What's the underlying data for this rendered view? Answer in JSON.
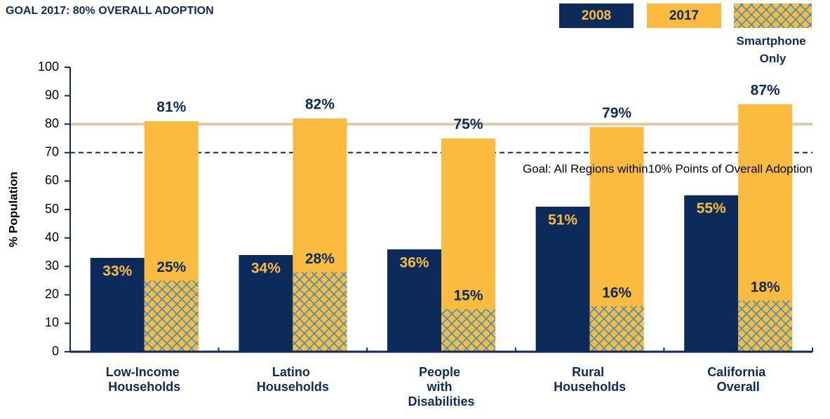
{
  "chart_data": {
    "type": "bar",
    "title": "GOAL 2017: 80% OVERALL ADOPTION",
    "y_label": "% Population",
    "categories": [
      "Low-Income Households",
      "Latino Households",
      "People with Disabilities",
      "Rural Households",
      "California Overall"
    ],
    "series": [
      {
        "name": "2008",
        "color": "#0d2b5a",
        "label_color": "#fbbb3f",
        "values": [
          33,
          34,
          36,
          51,
          55
        ],
        "value_labels": [
          "33%",
          "34%",
          "36%",
          "51%",
          "55%"
        ]
      },
      {
        "name": "2017",
        "color": "#fbbb3f",
        "label_color": "#0d2b5a",
        "values": [
          81,
          82,
          75,
          79,
          87
        ],
        "value_labels": [
          "81%",
          "82%",
          "75%",
          "79%",
          "87%"
        ]
      },
      {
        "name": "Smartphone Only",
        "color": "#3a8fc7",
        "hatch": true,
        "overlay_on": "2017",
        "label_color": "#0d2b5a",
        "values": [
          25,
          28,
          15,
          16,
          18
        ],
        "value_labels": [
          "25%",
          "28%",
          "15%",
          "16%",
          "18%"
        ]
      }
    ],
    "reference_lines": [
      {
        "value": 80,
        "color": "#dccca6"
      },
      {
        "value": 70,
        "color": "#0d2b5a",
        "dashed": true,
        "label": "Goal: All Regions within10% Points of Overall Adoption"
      }
    ],
    "ylim": [
      0,
      100
    ],
    "yticks": [
      0,
      10,
      20,
      30,
      40,
      50,
      60,
      70,
      80,
      90,
      100
    ],
    "legend": "top-right"
  }
}
